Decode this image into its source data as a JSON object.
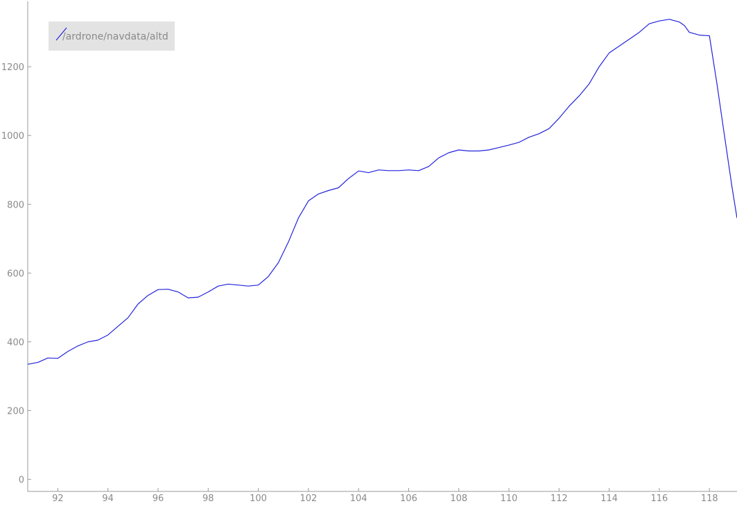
{
  "chart_data": {
    "type": "line",
    "title": "",
    "xlabel": "",
    "ylabel": "",
    "xlim": [
      90.8,
      119.1
    ],
    "ylim": [
      -35,
      1390
    ],
    "x_ticks": [
      "92",
      "94",
      "96",
      "98",
      "100",
      "102",
      "104",
      "106",
      "108",
      "110",
      "112",
      "114",
      "116",
      "118"
    ],
    "y_ticks": [
      "0",
      "200",
      "400",
      "600",
      "800",
      "1000",
      "1200"
    ],
    "grid": false,
    "legend_position": "top-left",
    "line_color": "#2222dd",
    "series": [
      {
        "name": "/ardrone/navdata/altd",
        "x": [
          90.8,
          91.2,
          91.6,
          92.0,
          92.4,
          92.8,
          93.2,
          93.6,
          94.0,
          94.4,
          94.8,
          95.2,
          95.6,
          96.0,
          96.4,
          96.8,
          97.2,
          97.6,
          98.0,
          98.4,
          98.8,
          99.2,
          99.6,
          100.0,
          100.4,
          100.8,
          101.2,
          101.6,
          102.0,
          102.4,
          102.8,
          103.2,
          103.6,
          104.0,
          104.4,
          104.8,
          105.2,
          105.6,
          106.0,
          106.4,
          106.8,
          107.2,
          107.6,
          108.0,
          108.4,
          108.8,
          109.2,
          109.6,
          110.0,
          110.4,
          110.8,
          111.2,
          111.6,
          112.0,
          112.4,
          112.8,
          113.2,
          113.6,
          114.0,
          114.4,
          114.8,
          115.2,
          115.6,
          116.0,
          116.4,
          116.8,
          117.0,
          117.2,
          117.6,
          118.0,
          118.3,
          118.6,
          118.9,
          119.1
        ],
        "y": [
          335,
          340,
          353,
          352,
          372,
          388,
          400,
          405,
          420,
          445,
          470,
          510,
          535,
          552,
          553,
          545,
          528,
          530,
          545,
          562,
          568,
          565,
          562,
          565,
          590,
          630,
          690,
          760,
          810,
          830,
          840,
          848,
          875,
          897,
          892,
          900,
          898,
          898,
          900,
          898,
          910,
          935,
          950,
          958,
          955,
          955,
          958,
          965,
          972,
          980,
          995,
          1005,
          1020,
          1050,
          1085,
          1115,
          1150,
          1200,
          1240,
          1260,
          1280,
          1300,
          1325,
          1333,
          1338,
          1330,
          1320,
          1300,
          1292,
          1290,
          1150,
          1000,
          850,
          760
        ]
      }
    ]
  }
}
